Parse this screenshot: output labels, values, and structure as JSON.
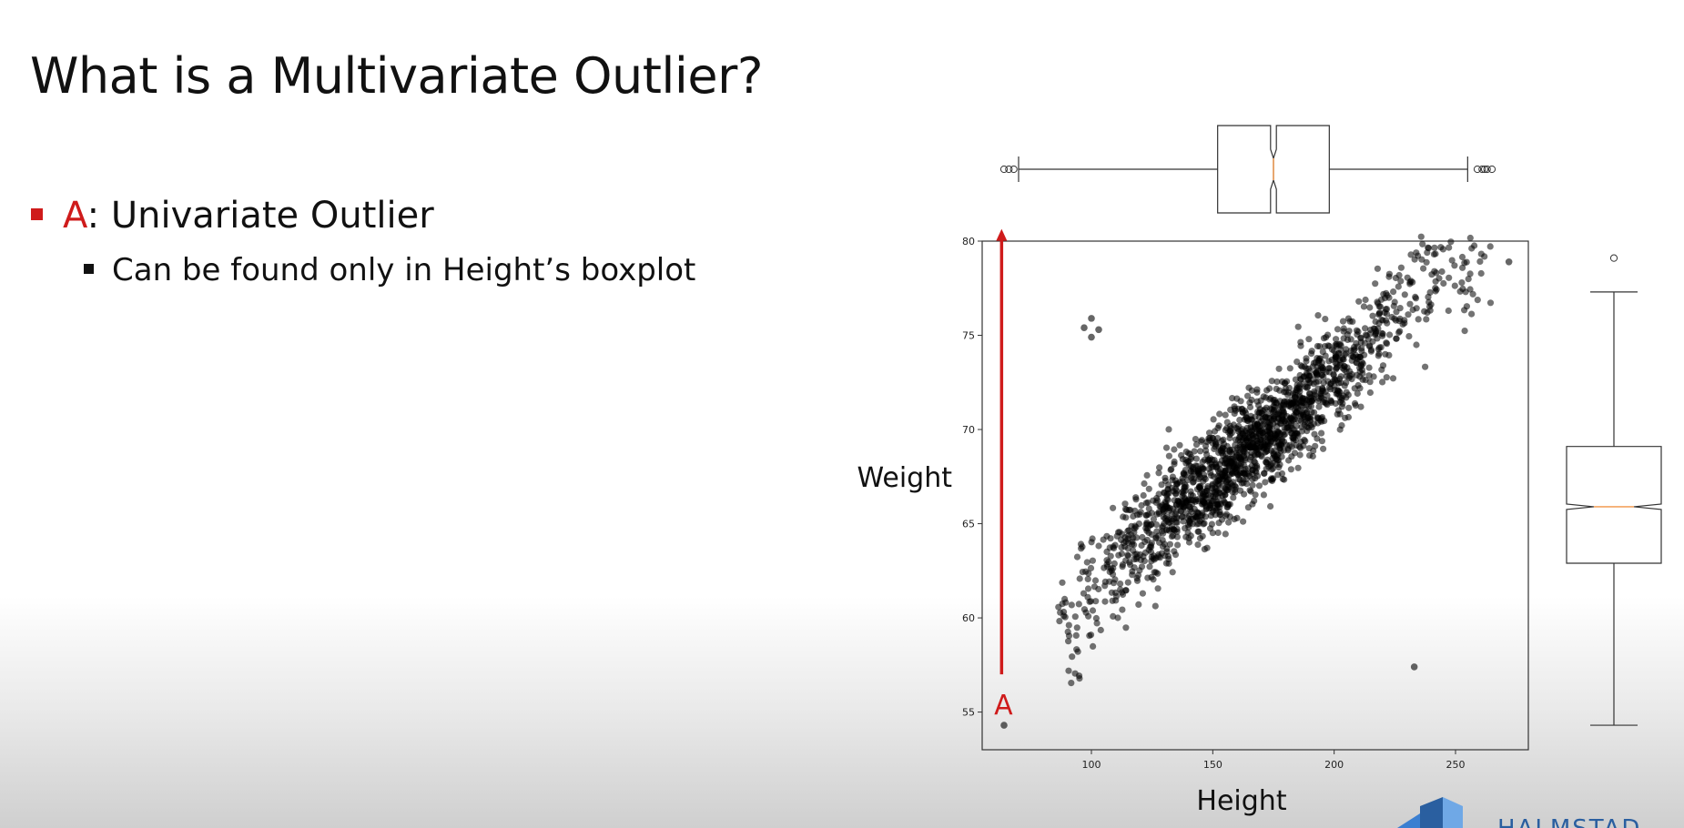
{
  "slide": {
    "title": "What is a Multivariate Outlier?",
    "bullet1_key": "A",
    "bullet1_text": ": Univariate Outlier",
    "bullet2_text": "Can be found only in Height’s boxplot",
    "logo_text": "HALMSTAD"
  },
  "colors": {
    "accent": "#cf1b1b",
    "points": "#000000",
    "median": "#f4a460",
    "logo": "#2a5fa0"
  },
  "chart_data": [
    {
      "type": "scatter",
      "xlabel": "Height",
      "ylabel": "Weight",
      "xlim": [
        55,
        280
      ],
      "ylim": [
        53,
        80
      ],
      "x_ticks": [
        100,
        150,
        200,
        250
      ],
      "y_ticks": [
        55,
        60,
        65,
        70,
        75,
        80
      ],
      "series": [
        {
          "points": [
            [
              90,
              60.5
            ],
            [
              95,
              59
            ],
            [
              100,
              61.5
            ],
            [
              105,
              62
            ],
            [
              110,
              63
            ],
            [
              115,
              63.5
            ],
            [
              120,
              64
            ],
            [
              125,
              64.5
            ],
            [
              130,
              65.2
            ],
            [
              135,
              65.8
            ],
            [
              140,
              66.3
            ],
            [
              145,
              66.9
            ],
            [
              150,
              67.4
            ],
            [
              155,
              68
            ],
            [
              160,
              68.5
            ],
            [
              165,
              69
            ],
            [
              170,
              69.5
            ],
            [
              175,
              70
            ],
            [
              180,
              70.6
            ],
            [
              185,
              71.2
            ],
            [
              190,
              71.8
            ],
            [
              195,
              72.4
            ],
            [
              200,
              73
            ],
            [
              205,
              73.6
            ],
            [
              210,
              74.2
            ],
            [
              215,
              74.8
            ],
            [
              220,
              75.5
            ],
            [
              225,
              76.2
            ],
            [
              230,
              76.8
            ],
            [
              235,
              77.3
            ],
            [
              240,
              77.8
            ],
            [
              245,
              78.3
            ],
            [
              250,
              78.5
            ],
            [
              255,
              78.8
            ],
            [
              260,
              78.4
            ]
          ]
        }
      ],
      "outliers": [
        [
          64,
          54.3
        ],
        [
          97,
          75.4
        ],
        [
          100,
          75.9
        ],
        [
          103,
          75.3
        ],
        [
          100,
          74.9
        ],
        [
          233,
          57.4
        ],
        [
          272,
          78.9
        ]
      ],
      "annotation": {
        "label": "A",
        "arrow_x": 63,
        "arrow_from_y": 57,
        "arrow_to_y": 80.5
      }
    },
    {
      "type": "boxplot",
      "orientation": "horizontal",
      "variable": "Height",
      "whisker_low": 70,
      "q1": 152,
      "median": 175,
      "q3": 198,
      "whisker_high": 255,
      "notch": true,
      "fliers": [
        64,
        66,
        68,
        259,
        261,
        262,
        263,
        265
      ]
    },
    {
      "type": "boxplot",
      "orientation": "vertical",
      "variable": "Weight",
      "whisker_low": 54.3,
      "q1": 62.9,
      "median": 65.9,
      "q3": 69.1,
      "whisker_high": 77.3,
      "notch": true,
      "fliers": [
        79.1
      ]
    }
  ]
}
